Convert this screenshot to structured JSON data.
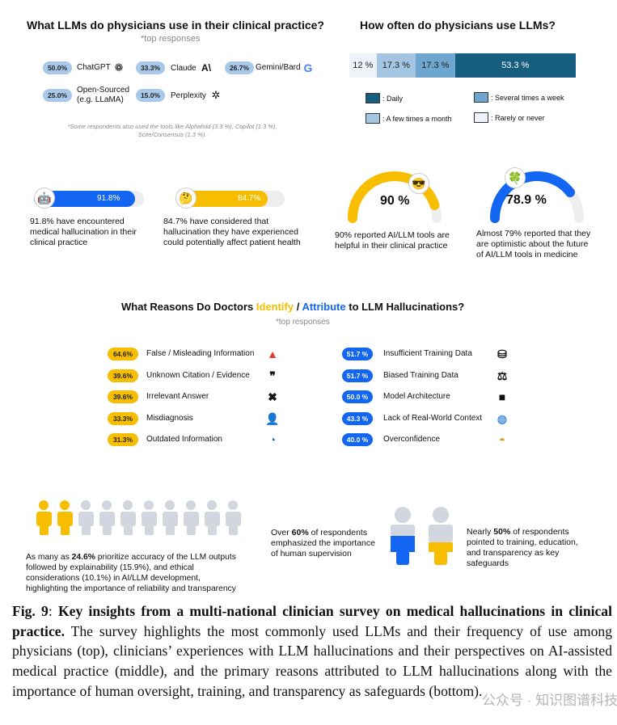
{
  "llms": {
    "title": "What LLMs do physicians use in their clinical practice?",
    "subtitle": "*top responses",
    "items": [
      {
        "pct": "50.0%",
        "name": "ChatGPT"
      },
      {
        "pct": "33.3%",
        "name": "Claude"
      },
      {
        "pct": "26.7%",
        "name": "Gemini/Bard"
      },
      {
        "pct": "25.0%",
        "name": "Open-Sourced",
        "name2": "(e.g. LLaMA)"
      },
      {
        "pct": "15.0%",
        "name": "Perplexity"
      }
    ],
    "claude_logo": "A\\",
    "google_logo": "G",
    "note1": "*Some respondents also used the tools like Alphafold (3.3 %), Copilot (1.3 %),",
    "note2": "Scite/Consensus (1.3 %)."
  },
  "freq": {
    "title": "How often do physicians use LLMs?",
    "segments": [
      {
        "label": "12 %",
        "value": 12,
        "color": "#eef2fa"
      },
      {
        "label": "17.3 %",
        "value": 17.3,
        "color": "#a4c6e3"
      },
      {
        "label": "17.3 %",
        "value": 17.3,
        "color": "#6fa6cf"
      },
      {
        "label": "53.3 %",
        "value": 53.3,
        "color": "#165e80"
      }
    ],
    "legend": [
      {
        "label": ": Daily",
        "color": "#165e80"
      },
      {
        "label": ": Several times a week",
        "color": "#6fa6cf"
      },
      {
        "label": ": A few times a month",
        "color": "#a4c6e3"
      },
      {
        "label": ": Rarely or never",
        "color": "#eef2fa"
      }
    ]
  },
  "stats": [
    {
      "value": 91.8,
      "label": "91.8%",
      "text": [
        "91.8% have encountered",
        "medical hallucination in their",
        "clinical practice"
      ],
      "color": "#1266f1"
    },
    {
      "value": 84.7,
      "label": "84.7%",
      "text": [
        "84.7% have considered that",
        "hallucination they have experienced",
        "could potentially affect patient health"
      ],
      "color": "#f7be00"
    },
    {
      "value": 90,
      "label": "90 %",
      "text": [
        "90% reported AI/LLM tools are",
        "helpful in their clinical practice"
      ],
      "color": "#f7be00"
    },
    {
      "value": 78.9,
      "label": "78.9 %",
      "text": [
        "Almost 79% reported that they",
        "are optimistic about the future",
        "of AI/LLM tools in medicine"
      ],
      "color": "#1266f1"
    }
  ],
  "reasons": {
    "title_a": "What Reasons Do Doctors ",
    "title_identify": "Identify",
    "title_slash": " / ",
    "title_attribute": "Attribute",
    "title_b": " to LLM Hallucinations?",
    "subtitle": "*top responses",
    "identify": [
      {
        "pct": "64.6%",
        "label": "False / Misleading Information",
        "icon": "warning-icon"
      },
      {
        "pct": "39.6%",
        "label": "Unknown Citation / Evidence",
        "icon": "quote-icon"
      },
      {
        "pct": "39.6%",
        "label": "Irrelevant Answer",
        "icon": "x-icon"
      },
      {
        "pct": "33.3%",
        "label": "Misdiagnosis",
        "icon": "user-alert-icon"
      },
      {
        "pct": "31.3%",
        "label": "Outdated Information",
        "icon": "clock-icon"
      }
    ],
    "attribute": [
      {
        "pct": "51.7 %",
        "label": "Insufficient Training Data",
        "icon": "database-x-icon"
      },
      {
        "pct": "51.7 %",
        "label": "Biased Training Data",
        "icon": "scale-icon"
      },
      {
        "pct": "50.0 %",
        "label": "Model Architecture",
        "icon": "black-box-icon"
      },
      {
        "pct": "43.3 %",
        "label": "Lack of Real-World Context",
        "icon": "globe-icon"
      },
      {
        "pct": "40.0 %",
        "label": "Overconfidence",
        "icon": "gauge-icon"
      }
    ]
  },
  "bottom": {
    "people_highlighted": 2,
    "people_total": 10,
    "t1a": "As many as ",
    "t1b": "24.6%",
    "t1c": " prioritize accuracy of the LLM outputs",
    "t1d": "followed by explainability (15.9%), and ethical",
    "t1e": "considerations (10.1%) in AI/LLM development,",
    "t1f": "highlighting the importance of reliability and transparency",
    "t2a": "Over ",
    "t2b": "60%",
    "t2c": " of respondents",
    "t2d": "emphasized the importance",
    "t2e": "of human supervision",
    "t3a": "Nearly ",
    "t3b": "50%",
    "t3c": " of respondents",
    "t3d": "pointed to training, education,",
    "t3e": "and transparency as key",
    "t3f": "safeguards"
  },
  "caption": {
    "fig": "Fig. 9",
    "colon": ": ",
    "bold": "Key insights from a multi-national clinician survey on medical hallucinations in clinical practice.",
    "rest": " The survey highlights the most commonly used LLMs and their frequency of use among physicians (top), clinicians’ experiences with LLM hallucinations and their perspectives on AI-assisted medical practice (middle), and the primary reasons attributed to LLM hallucinations along with the importance of human oversight, training, and transparency as safeguards (bottom)."
  },
  "watermark": "公众号 · 知识图谱科技"
}
